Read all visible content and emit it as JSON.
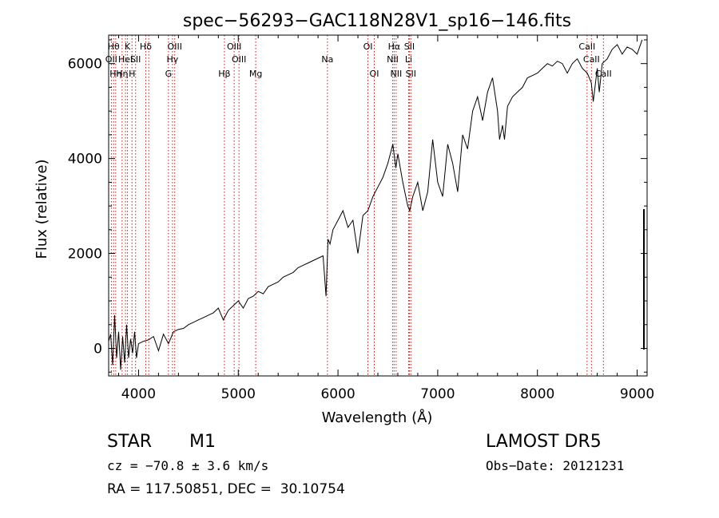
{
  "chart_data": {
    "type": "line",
    "title": "spec−56293−GAC118N28V1_sp16−146.fits",
    "xlabel": "Wavelength (Å)",
    "ylabel": "Flux (relative)",
    "xlim": [
      3700,
      9100
    ],
    "ylim": [
      -580,
      6600
    ],
    "xticks": [
      4000,
      5000,
      6000,
      7000,
      8000,
      9000
    ],
    "yticks": [
      0,
      2000,
      4000,
      6000
    ],
    "grid": false,
    "series": [
      {
        "x": [
          3700,
          3720,
          3740,
          3760,
          3780,
          3800,
          3820,
          3840,
          3860,
          3880,
          3900,
          3920,
          3940,
          3960,
          3980,
          4000,
          4050,
          4100,
          4150,
          4200,
          4250,
          4300,
          4350,
          4400,
          4450,
          4500,
          4550,
          4600,
          4650,
          4700,
          4750,
          4800,
          4850,
          4900,
          4950,
          5000,
          5050,
          5100,
          5150,
          5200,
          5250,
          5300,
          5350,
          5400,
          5450,
          5500,
          5550,
          5600,
          5650,
          5700,
          5750,
          5800,
          5850,
          5880,
          5900,
          5920,
          5950,
          6000,
          6050,
          6100,
          6150,
          6200,
          6250,
          6300,
          6350,
          6400,
          6450,
          6500,
          6550,
          6580,
          6600,
          6650,
          6700,
          6720,
          6750,
          6800,
          6850,
          6900,
          6950,
          7000,
          7050,
          7100,
          7150,
          7200,
          7250,
          7300,
          7350,
          7400,
          7450,
          7500,
          7550,
          7600,
          7620,
          7650,
          7670,
          7700,
          7750,
          7800,
          7850,
          7900,
          7950,
          8000,
          8050,
          8100,
          8150,
          8200,
          8250,
          8300,
          8350,
          8400,
          8450,
          8500,
          8540,
          8560,
          8600,
          8620,
          8650,
          8700,
          8750,
          8800,
          8850,
          8900,
          8950,
          9000,
          9050
        ],
        "y": [
          150,
          300,
          -350,
          700,
          -200,
          350,
          -450,
          250,
          -300,
          500,
          -200,
          200,
          -100,
          350,
          -200,
          100,
          150,
          180,
          250,
          -50,
          300,
          100,
          350,
          400,
          420,
          500,
          550,
          600,
          650,
          700,
          750,
          850,
          600,
          800,
          900,
          1000,
          850,
          1050,
          1100,
          1200,
          1150,
          1300,
          1350,
          1400,
          1500,
          1550,
          1600,
          1700,
          1750,
          1800,
          1850,
          1900,
          1950,
          1100,
          2300,
          2200,
          2500,
          2700,
          2900,
          2550,
          2700,
          2000,
          2800,
          2900,
          3200,
          3400,
          3600,
          3900,
          4300,
          3800,
          4100,
          3500,
          3000,
          2900,
          3200,
          3500,
          2900,
          3300,
          4400,
          3500,
          3200,
          4300,
          3900,
          3300,
          4500,
          4200,
          5000,
          5300,
          4800,
          5400,
          5700,
          5000,
          4400,
          4700,
          4400,
          5100,
          5300,
          5400,
          5500,
          5700,
          5750,
          5800,
          5900,
          6000,
          5950,
          6050,
          6000,
          5800,
          6000,
          6100,
          5900,
          5800,
          5600,
          5200,
          5900,
          5400,
          6000,
          6100,
          6300,
          6400,
          6200,
          6350,
          6300,
          6200,
          6500
        ]
      }
    ],
    "lines": [
      {
        "x": 3727,
        "label": "OII",
        "row": 2
      },
      {
        "x": 3750,
        "label": "Hθ",
        "row": 1
      },
      {
        "x": 3771,
        "label": "Hη",
        "row": 3
      },
      {
        "x": 3835,
        "label": "Hη",
        "row": 3
      },
      {
        "x": 3869,
        "label": "HeI",
        "row": 2
      },
      {
        "x": 3889,
        "label": "K",
        "row": 1
      },
      {
        "x": 3934,
        "label": "H",
        "row": 3
      },
      {
        "x": 3970,
        "label": "SII",
        "row": 2
      },
      {
        "x": 4072,
        "label": "Hδ",
        "row": 1
      },
      {
        "x": 4102,
        "label": "",
        "row": 0
      },
      {
        "x": 4300,
        "label": "G",
        "row": 3
      },
      {
        "x": 4340,
        "label": "Hγ",
        "row": 2
      },
      {
        "x": 4363,
        "label": "OIII",
        "row": 1
      },
      {
        "x": 4861,
        "label": "Hβ",
        "row": 3
      },
      {
        "x": 4959,
        "label": "OIII",
        "row": 1
      },
      {
        "x": 5007,
        "label": "OIII",
        "row": 2
      },
      {
        "x": 5175,
        "label": "Mg",
        "row": 3
      },
      {
        "x": 5894,
        "label": "Na",
        "row": 2
      },
      {
        "x": 6300,
        "label": "OI",
        "row": 1
      },
      {
        "x": 6364,
        "label": "OI",
        "row": 3
      },
      {
        "x": 6548,
        "label": "NII",
        "row": 2
      },
      {
        "x": 6563,
        "label": "Hα",
        "row": 1
      },
      {
        "x": 6583,
        "label": "NII",
        "row": 3
      },
      {
        "x": 6708,
        "label": "Li",
        "row": 2
      },
      {
        "x": 6716,
        "label": "SII",
        "row": 1
      },
      {
        "x": 6731,
        "label": "SII",
        "row": 3
      },
      {
        "x": 8498,
        "label": "CaII",
        "row": 1
      },
      {
        "x": 8542,
        "label": "CaII",
        "row": 2
      },
      {
        "x": 8662,
        "label": "CaII",
        "row": 3
      }
    ]
  },
  "info": {
    "object_class": "STAR",
    "subclass": "M1",
    "survey": "LAMOST DR5",
    "velocity": "cz = −70.8 ± 3.6 km/s",
    "obs_date": "Obs−Date: 20121231",
    "coords": "RA = 117.50851, DEC =  30.10754"
  }
}
